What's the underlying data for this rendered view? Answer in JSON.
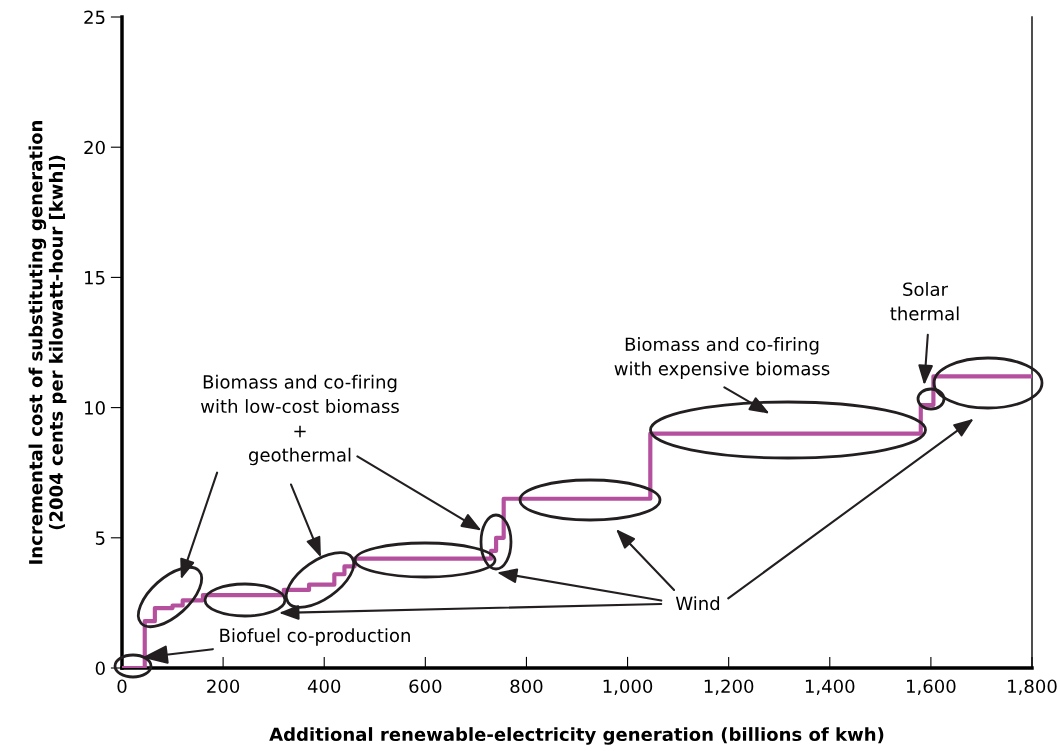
{
  "chart_data": {
    "type": "step",
    "xlabel": "Additional renewable-electricity generation (billions of kwh)",
    "ylabel": "Incremental cost of substituting generation\n(2004 cents per kilowatt-hour [kwh])",
    "x": [
      0,
      45,
      65,
      100,
      120,
      160,
      320,
      370,
      420,
      440,
      460,
      730,
      740,
      755,
      1045,
      1580,
      1605,
      1800
    ],
    "series": [
      {
        "color": "#b5509f",
        "values": [
          0,
          1.8,
          2.3,
          2.4,
          2.6,
          2.8,
          3.0,
          3.2,
          3.6,
          3.9,
          4.2,
          4.5,
          5.0,
          6.5,
          9.0,
          10.1,
          11.2,
          11.2
        ]
      }
    ],
    "xlim": [
      0,
      1800
    ],
    "ylim": [
      0,
      25
    ],
    "xticks": [
      0,
      200,
      400,
      600,
      800,
      {
        "value": 1000,
        "label": "1,000"
      },
      {
        "value": 1200,
        "label": "1,200"
      },
      {
        "value": 1400,
        "label": "1,400"
      },
      {
        "value": 1600,
        "label": "1,600"
      },
      {
        "value": 1800,
        "label": "1,800"
      }
    ],
    "yticks": [
      0,
      5,
      10,
      15,
      20,
      25
    ],
    "grid": false,
    "marker": "none",
    "line_style": "solid",
    "annotations": [
      "Biomass and co-firing\nwith low-cost biomass\n+\ngeothermal",
      {
        "text": "Biofuel co-production",
        "x": 40,
        "y": 0.4
      },
      "Wind",
      "Biomass and co-firing\nwith expensive biomass",
      "Solar\nthermal"
    ]
  }
}
